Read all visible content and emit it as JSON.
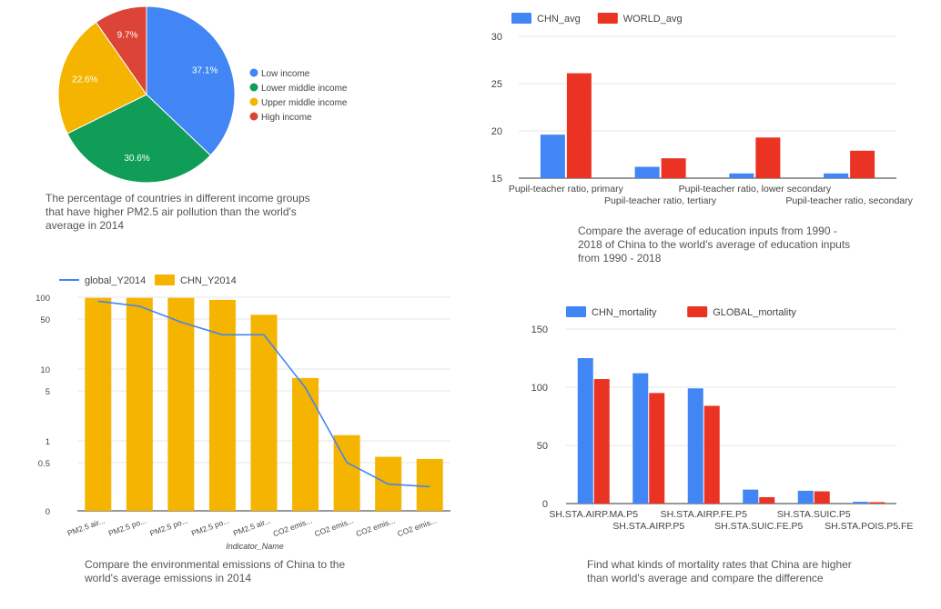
{
  "colors": {
    "blue": "#4285f4",
    "green": "#0f9d58",
    "yellow": "#f4b400",
    "red": "#db4437",
    "red_bar": "#ea3323",
    "grid": "#e6e6e6",
    "axis": "#333333",
    "text": "#555555"
  },
  "chart_data": [
    {
      "id": "pie",
      "type": "pie",
      "slices": [
        {
          "label": "Low income",
          "value": 37.1,
          "display": "37.1%",
          "color": "#4285f4"
        },
        {
          "label": "Lower middle income",
          "value": 30.6,
          "display": "30.6%",
          "color": "#0f9d58"
        },
        {
          "label": "Upper middle income",
          "value": 22.6,
          "display": "22.6%",
          "color": "#f4b400"
        },
        {
          "label": "High income",
          "value": 9.7,
          "display": "9.7%",
          "color": "#db4437"
        }
      ],
      "legend_position": "right",
      "caption": "The percentage of countries in different income groups\nthat have higher  PM2.5 air pollution than the world's\naverage in 2014"
    },
    {
      "id": "edu",
      "type": "bar",
      "categories": [
        "Pupil-teacher ratio, primary",
        "Pupil-teacher ratio, tertiary",
        "Pupil-teacher ratio, lower secondary",
        "Pupil-teacher ratio, secondary"
      ],
      "series": [
        {
          "name": "CHN_avg",
          "values": [
            19.6,
            16.2,
            15.5,
            15.5
          ],
          "color": "#4285f4"
        },
        {
          "name": "WORLD_avg",
          "values": [
            26.1,
            17.1,
            19.3,
            17.9
          ],
          "color": "#ea3323"
        }
      ],
      "ylim": [
        15,
        30
      ],
      "yticks": [
        15,
        20,
        25,
        30
      ],
      "legend_position": "top-left",
      "grid": true,
      "caption": "Compare the average of education inputs from 1990 -\n2018 of China to the world's average of education inputs\nfrom 1990 - 2018"
    },
    {
      "id": "env",
      "type": "bar",
      "scale": "log",
      "categories": [
        "PM2.5 air...",
        "PM2.5 po...",
        "PM2.5 po...",
        "PM2.5 po...",
        "PM2.5 air...",
        "CO2 emis...",
        "CO2 emis...",
        "CO2 emis...",
        "CO2 emis..."
      ],
      "series": [
        {
          "name": "global_Y2014",
          "kind": "line",
          "values": [
            88,
            75,
            45,
            30,
            30,
            5.5,
            0.5,
            0.25,
            0.23
          ],
          "color": "#4285f4"
        },
        {
          "name": "CHN_Y2014",
          "kind": "bar",
          "values": [
            98,
            98,
            98,
            92,
            57,
            7.5,
            1.2,
            0.6,
            0.56
          ],
          "color": "#f4b400"
        }
      ],
      "yticks": [
        "100",
        "50",
        "10",
        "5",
        "1",
        "0.5",
        "0"
      ],
      "xlabel": "Indicator_Name",
      "legend_position": "top-left",
      "grid": true,
      "caption": "Compare the environmental emissions of China to the\nworld's average emissions in 2014"
    },
    {
      "id": "mort",
      "type": "bar",
      "categories": [
        "SH.STA.AIRP.MA.P5",
        "SH.STA.AIRP.P5",
        "SH.STA.AIRP.FE.P5",
        "SH.STA.SUIC.FE.P5",
        "SH.STA.SUIC.P5",
        "SH.STA.POIS.P5.FE"
      ],
      "series": [
        {
          "name": "CHN_mortality",
          "values": [
            125,
            112,
            99,
            12,
            11,
            1.5
          ],
          "color": "#4285f4"
        },
        {
          "name": "GLOBAL_mortality",
          "values": [
            107,
            95,
            84,
            5.5,
            10.5,
            1.2
          ],
          "color": "#ea3323"
        }
      ],
      "ylim": [
        0,
        150
      ],
      "yticks": [
        0,
        50,
        100,
        150
      ],
      "legend_position": "top-left",
      "grid": true,
      "caption": "Find what kinds of mortality rates that China are higher\nthan world's average and compare the difference"
    }
  ]
}
